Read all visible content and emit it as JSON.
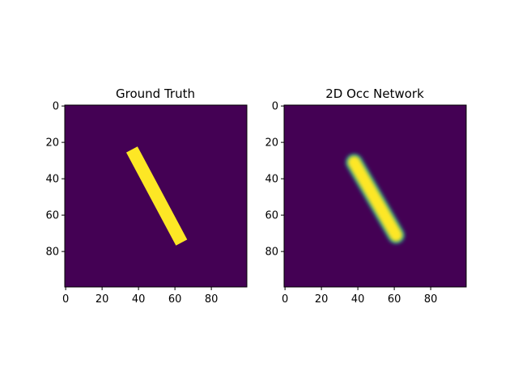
{
  "colors": {
    "background": "#440154",
    "foreground": "#fde725",
    "mid": "#21918c",
    "axis": "#000000"
  },
  "chart_data": [
    {
      "type": "heatmap",
      "title": "Ground Truth",
      "colormap": "viridis",
      "xlim": [
        0,
        99
      ],
      "ylim": [
        99,
        0
      ],
      "xticks": [
        "0",
        "20",
        "40",
        "60",
        "80"
      ],
      "yticks": [
        "0",
        "20",
        "40",
        "60",
        "80"
      ],
      "shape": {
        "kind": "bar",
        "edge": "sharp",
        "start": [
          38,
          27
        ],
        "end": [
          62,
          72
        ],
        "half_width": 3.5,
        "value": 1.0
      }
    },
    {
      "type": "heatmap",
      "title": "2D Occ Network",
      "colormap": "viridis",
      "xlim": [
        0,
        99
      ],
      "ylim": [
        99,
        0
      ],
      "xticks": [
        "0",
        "20",
        "40",
        "60",
        "80"
      ],
      "yticks": [
        "0",
        "20",
        "40",
        "60",
        "80"
      ],
      "shape": {
        "kind": "bar",
        "edge": "soft",
        "start": [
          38,
          31
        ],
        "end": [
          61,
          71
        ],
        "half_width": 3.5,
        "value": 1.0
      }
    }
  ]
}
